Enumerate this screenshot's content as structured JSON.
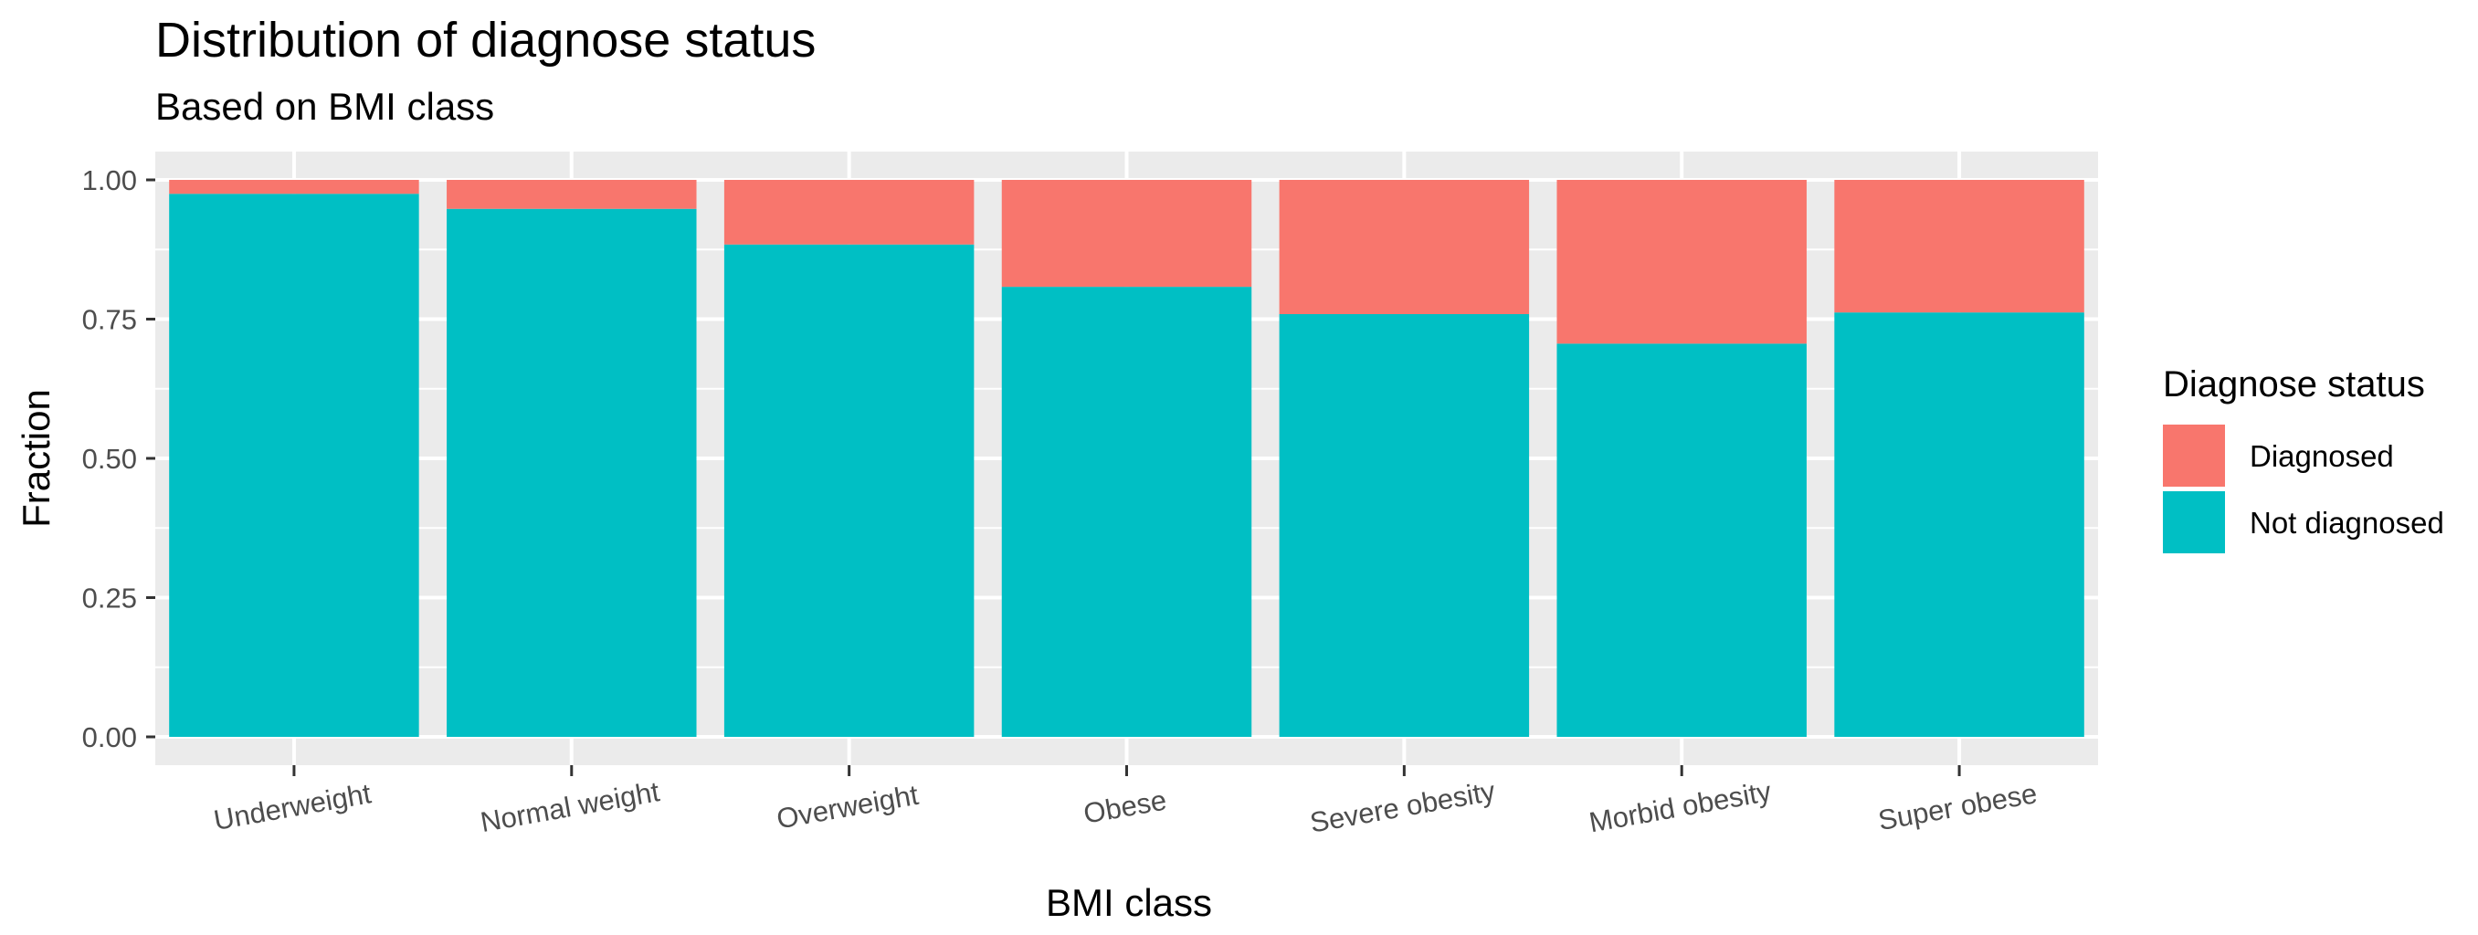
{
  "chart_data": {
    "type": "bar",
    "stacked": true,
    "title": "Distribution of diagnose status",
    "subtitle": "Based on BMI class",
    "xlabel": "BMI class",
    "ylabel": "Fraction",
    "ylim": [
      0,
      1
    ],
    "yticks": [
      "0.00",
      "0.25",
      "0.50",
      "0.75",
      "1.00"
    ],
    "grid": true,
    "categories": [
      "Underweight",
      "Normal weight",
      "Overweight",
      "Obese",
      "Severe obesity",
      "Morbid obesity",
      "Super obese"
    ],
    "series": [
      {
        "name": "Not diagnosed",
        "color": "#00BFC4",
        "values": [
          0.975,
          0.948,
          0.884,
          0.808,
          0.759,
          0.706,
          0.762
        ]
      },
      {
        "name": "Diagnosed",
        "color": "#F8766D",
        "values": [
          0.025,
          0.052,
          0.116,
          0.192,
          0.241,
          0.294,
          0.238
        ]
      }
    ],
    "legend": {
      "title": "Diagnose status",
      "position": "right",
      "entries": [
        "Diagnosed",
        "Not diagnosed"
      ]
    },
    "panel_color": "#EBEBEB",
    "grid_color": "#FFFFFF"
  }
}
